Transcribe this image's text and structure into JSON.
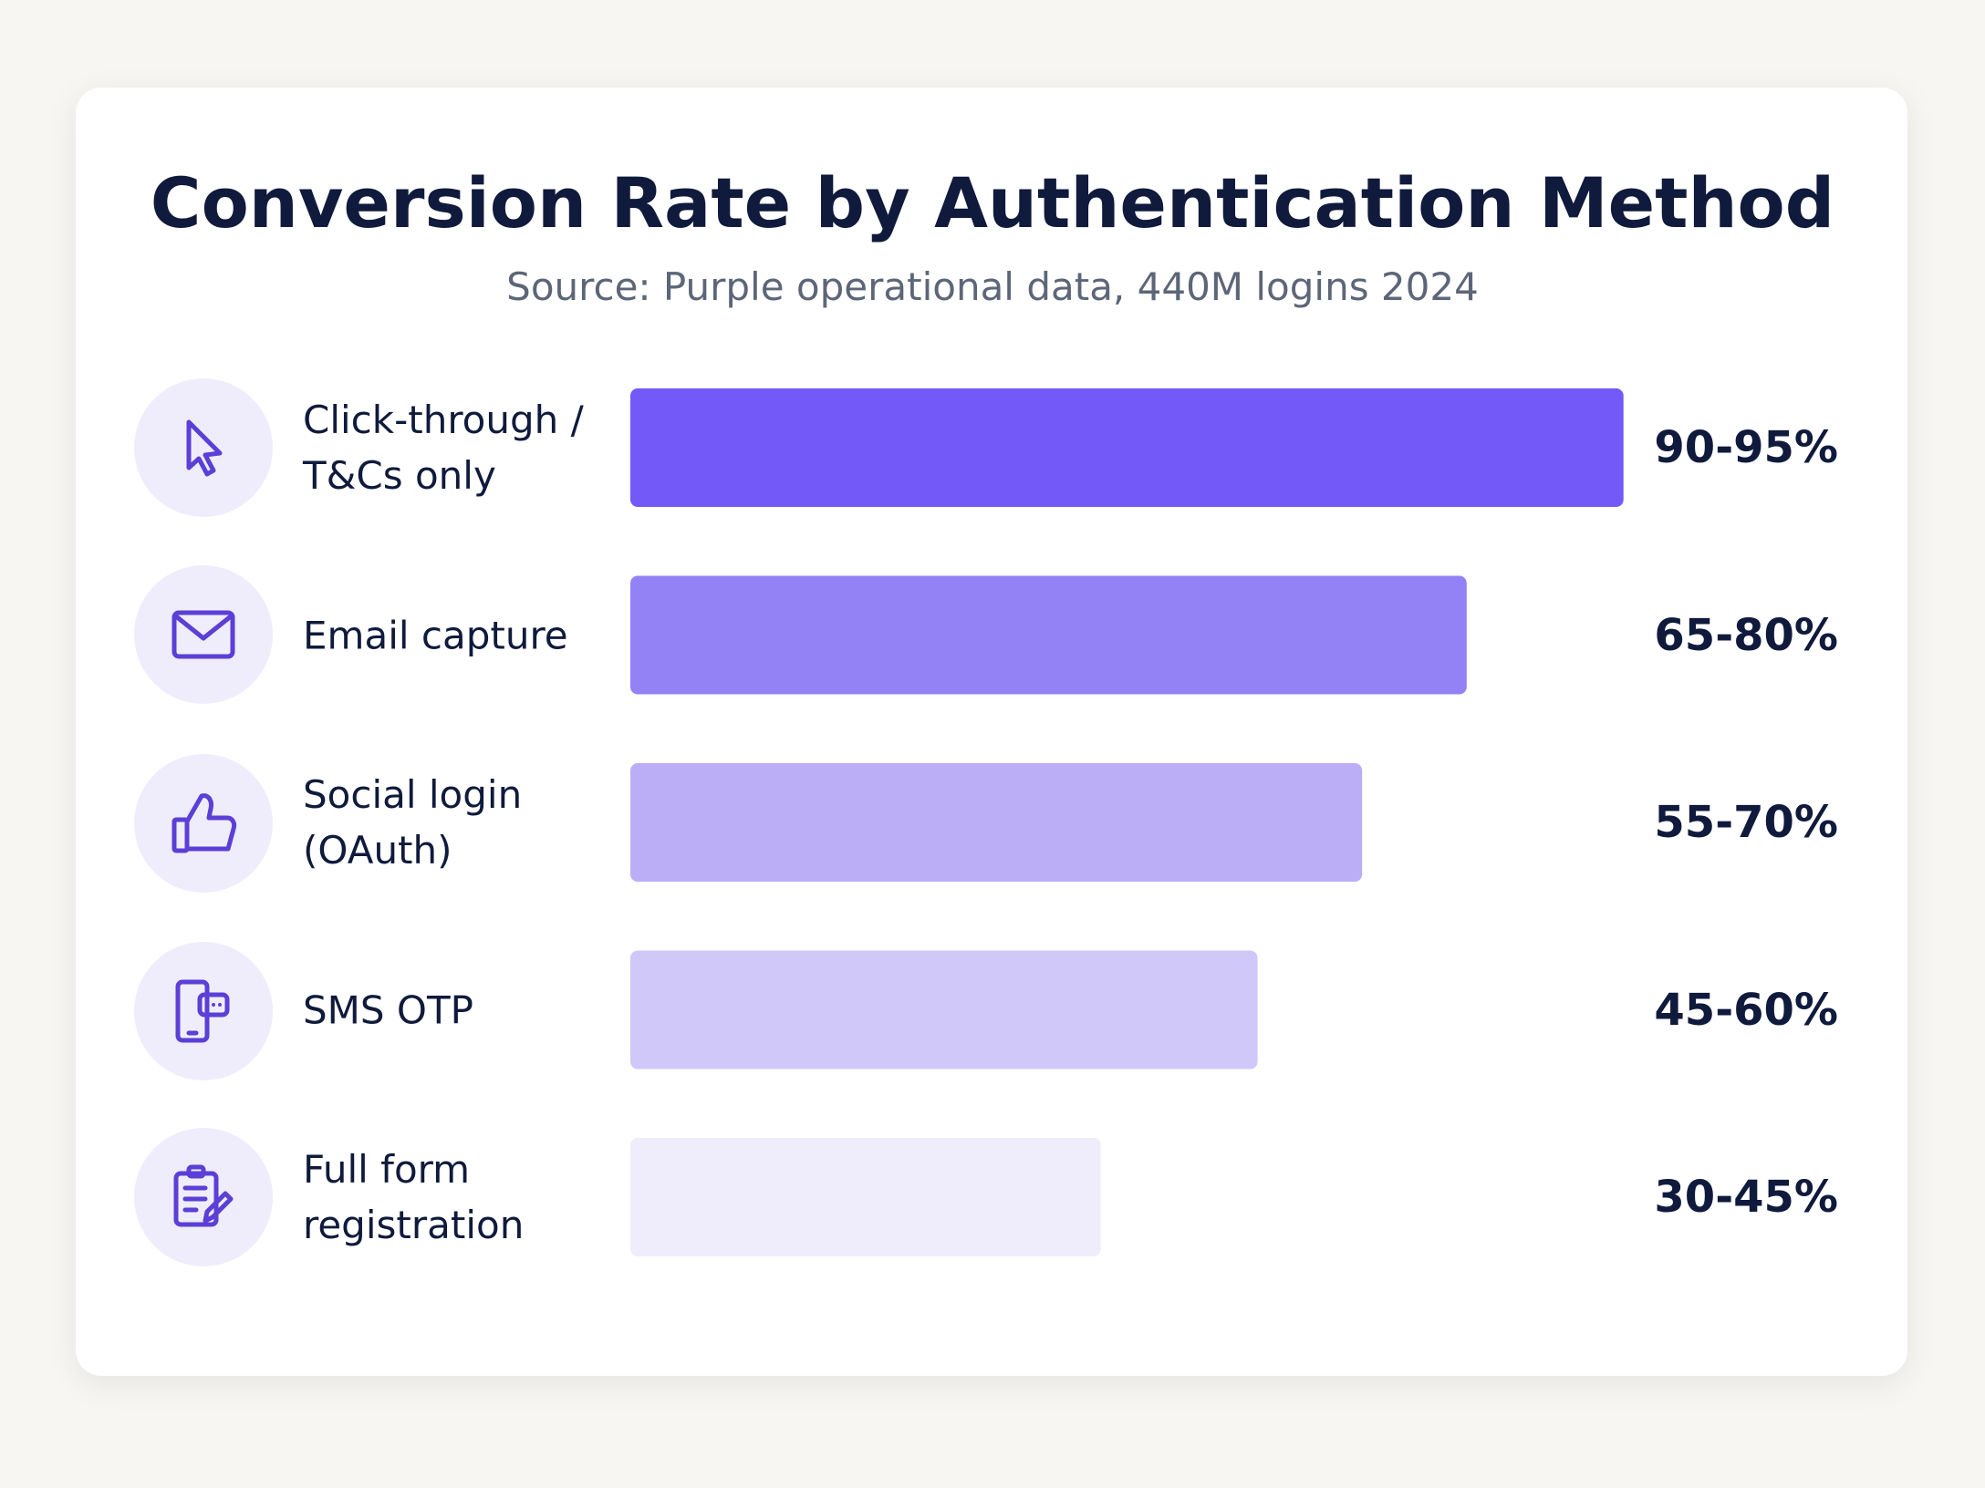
{
  "chart_data": {
    "type": "bar",
    "orientation": "horizontal",
    "title": "Conversion Rate by Authentication Method",
    "subtitle": "Source: Purple operational data, 440M logins 2024",
    "categories": [
      "Click-through /\nT&Cs only",
      "Email capture",
      "Social login\n(OAuth)",
      "SMS OTP",
      "Full form\nregistration"
    ],
    "values": [
      [
        90,
        95
      ],
      [
        65,
        80
      ],
      [
        55,
        70
      ],
      [
        45,
        60
      ],
      [
        30,
        45
      ]
    ],
    "value_labels": [
      "90-95%",
      "65-80%",
      "55-70%",
      "45-60%",
      "30-45%"
    ],
    "colors": [
      "#7359f8",
      "#9382f6",
      "#bbaef7",
      "#d0c8f8",
      "#efecfc"
    ],
    "xlim": [
      0,
      100
    ]
  }
}
